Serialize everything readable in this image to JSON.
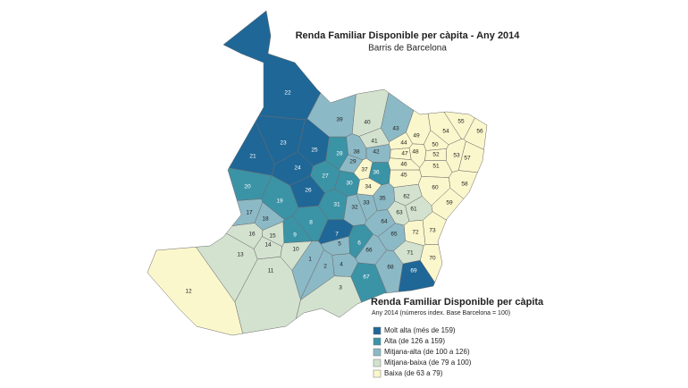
{
  "header": {
    "title": "Renda Familiar Disponible per càpita - Any 2014",
    "subtitle": "Barris de Barcelona"
  },
  "legend": {
    "title": "Renda Familiar Disponible per càpita",
    "subtitle": "Any 2014 (números index. Base Barcelona = 100)",
    "items": [
      {
        "label": "Molt alta (més de 159)",
        "color": "#1f6797"
      },
      {
        "label": "Alta (de 126 a 159)",
        "color": "#3b93a6"
      },
      {
        "label": "Mitjana-alta (de 100 a 126)",
        "color": "#8cb9c6"
      },
      {
        "label": "Mitjana-baixa (de 79 a 100)",
        "color": "#d3e2cf"
      },
      {
        "label": "Baixa (de 63 a 79)",
        "color": "#fbf7cc"
      }
    ]
  },
  "barris": [
    {
      "label": 1,
      "class": 2
    },
    {
      "label": 2,
      "class": 2
    },
    {
      "label": 3,
      "class": 3
    },
    {
      "label": 4,
      "class": 2
    },
    {
      "label": 5,
      "class": 2
    },
    {
      "label": 6,
      "class": 1
    },
    {
      "label": 7,
      "class": 0
    },
    {
      "label": 8,
      "class": 1
    },
    {
      "label": 9,
      "class": 1
    },
    {
      "label": 10,
      "class": 3
    },
    {
      "label": 11,
      "class": 3
    },
    {
      "label": 12,
      "class": 4
    },
    {
      "label": 13,
      "class": 3
    },
    {
      "label": 14,
      "class": 3
    },
    {
      "label": 15,
      "class": 3
    },
    {
      "label": 16,
      "class": 3
    },
    {
      "label": 17,
      "class": 2
    },
    {
      "label": 18,
      "class": 2
    },
    {
      "label": 19,
      "class": 1
    },
    {
      "label": 20,
      "class": 1
    },
    {
      "label": 21,
      "class": 0
    },
    {
      "label": 22,
      "class": 0
    },
    {
      "label": 23,
      "class": 0
    },
    {
      "label": 24,
      "class": 0
    },
    {
      "label": 25,
      "class": 0
    },
    {
      "label": 26,
      "class": 0
    },
    {
      "label": 27,
      "class": 1
    },
    {
      "label": 28,
      "class": 1
    },
    {
      "label": 29,
      "class": 2
    },
    {
      "label": 30,
      "class": 1
    },
    {
      "label": 31,
      "class": 1
    },
    {
      "label": 32,
      "class": 2
    },
    {
      "label": 33,
      "class": 2
    },
    {
      "label": 34,
      "class": 4
    },
    {
      "label": 35,
      "class": 2
    },
    {
      "label": 36,
      "class": 1
    },
    {
      "label": 37,
      "class": 4
    },
    {
      "label": 38,
      "class": 2
    },
    {
      "label": 39,
      "class": 2
    },
    {
      "label": 40,
      "class": 3
    },
    {
      "label": 41,
      "class": 3
    },
    {
      "label": 42,
      "class": 2
    },
    {
      "label": 43,
      "class": 2
    },
    {
      "label": 44,
      "class": 4
    },
    {
      "label": 45,
      "class": 4
    },
    {
      "label": 46,
      "class": 4
    },
    {
      "label": 47,
      "class": 4
    },
    {
      "label": 48,
      "class": 4
    },
    {
      "label": 49,
      "class": 4
    },
    {
      "label": 50,
      "class": 4
    },
    {
      "label": 51,
      "class": 4
    },
    {
      "label": 52,
      "class": 4
    },
    {
      "label": 53,
      "class": 4
    },
    {
      "label": 54,
      "class": 4
    },
    {
      "label": 55,
      "class": 4
    },
    {
      "label": 56,
      "class": 4
    },
    {
      "label": 57,
      "class": 4
    },
    {
      "label": 58,
      "class": 4
    },
    {
      "label": 59,
      "class": 4
    },
    {
      "label": 60,
      "class": 4
    },
    {
      "label": 61,
      "class": 3
    },
    {
      "label": 62,
      "class": 3
    },
    {
      "label": 63,
      "class": 3
    },
    {
      "label": 64,
      "class": 2
    },
    {
      "label": 65,
      "class": 2
    },
    {
      "label": 66,
      "class": 2
    },
    {
      "label": 67,
      "class": 1
    },
    {
      "label": 68,
      "class": 2
    },
    {
      "label": 69,
      "class": 0
    },
    {
      "label": 70,
      "class": 4
    },
    {
      "label": 71,
      "class": 3
    },
    {
      "label": 72,
      "class": 4
    },
    {
      "label": 73,
      "class": 4
    }
  ]
}
